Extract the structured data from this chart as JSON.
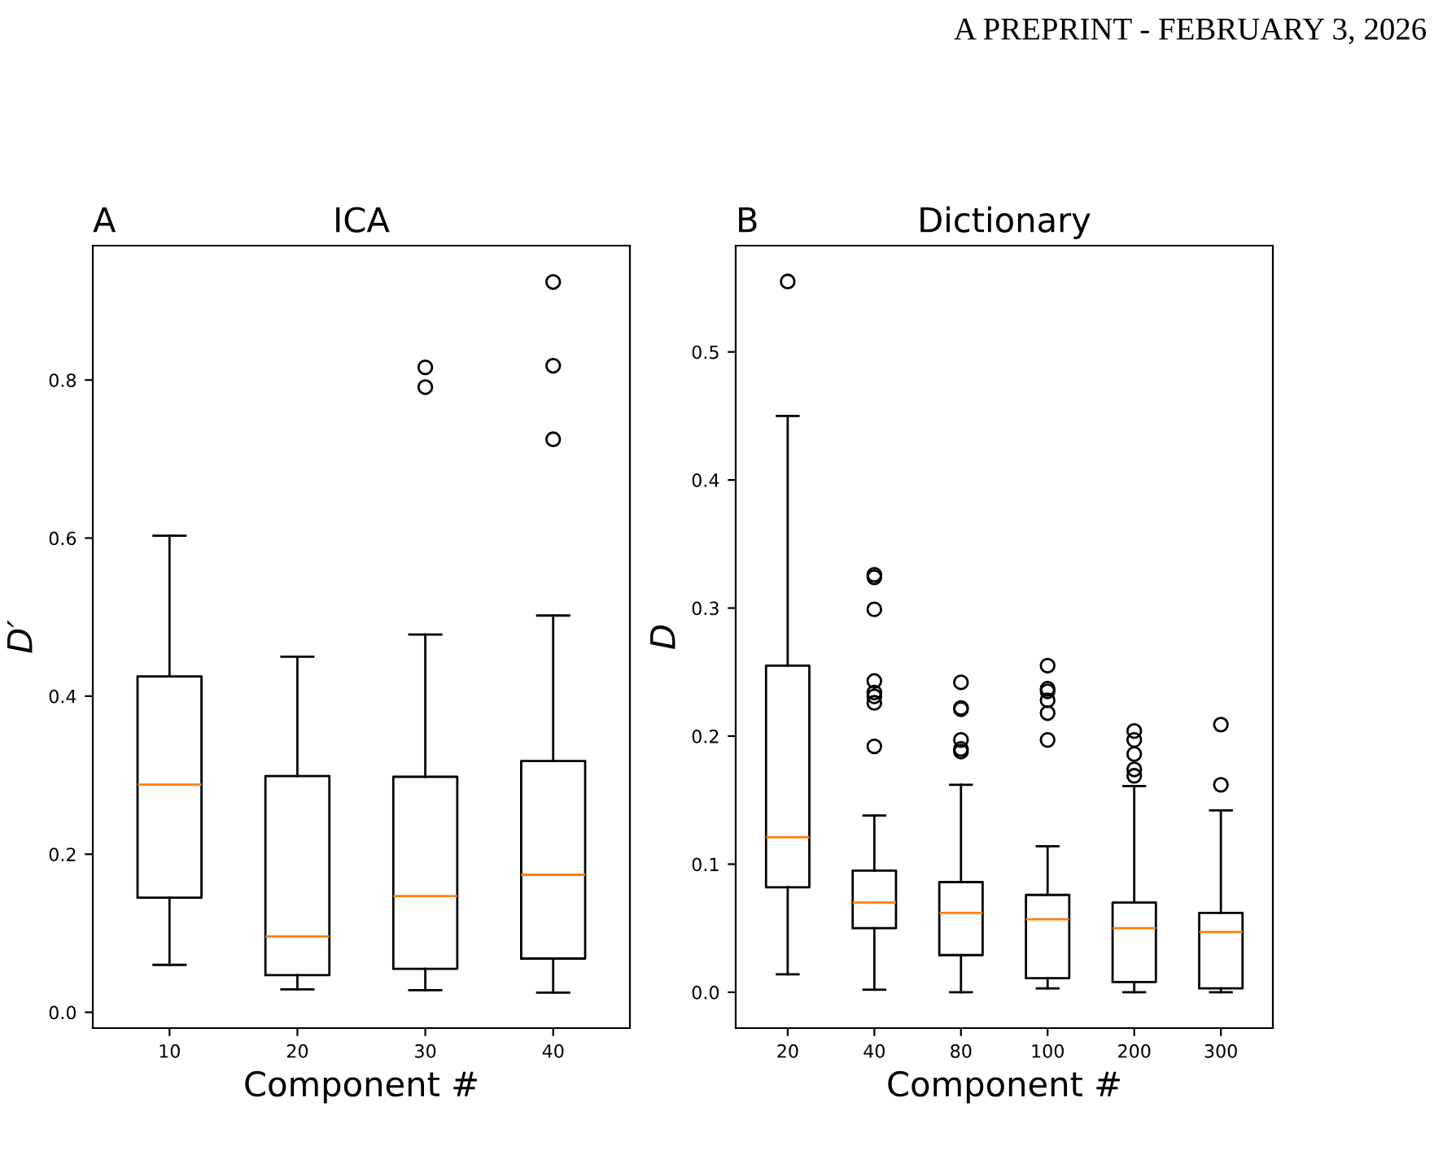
{
  "chart_data": [
    {
      "type": "box",
      "title": "ICA",
      "xlabel": "Component #",
      "ylabel": "D′",
      "annotations": [
        "A",
        "A PREPRINT - FEBRUARY 3, 2026"
      ],
      "categories": [
        "10",
        "20",
        "30",
        "40"
      ],
      "boxes": [
        {
          "low": 0.06,
          "q1": 0.145,
          "median": 0.288,
          "q3": 0.425,
          "high": 0.603
        },
        {
          "low": 0.029,
          "q1": 0.047,
          "median": 0.096,
          "q3": 0.299,
          "high": 0.45
        },
        {
          "low": 0.028,
          "q1": 0.055,
          "median": 0.147,
          "q3": 0.298,
          "high": 0.478,
          "outliers": [
            0.816,
            0.791
          ]
        },
        {
          "low": 0.025,
          "q1": 0.068,
          "median": 0.174,
          "q3": 0.318,
          "high": 0.502,
          "outliers": [
            0.924,
            0.818,
            0.725
          ]
        }
      ],
      "color": "#000000",
      "ylim": [
        -0.02,
        0.97
      ],
      "yticks": [
        {
          "value": 0,
          "label": "0.0"
        },
        0.2,
        0.4,
        0.6,
        0.8
      ],
      "grid": false,
      "legend": false
    },
    {
      "type": "box",
      "title": "Dictionary",
      "xlabel": "Component #",
      "ylabel": "D",
      "annotations": [
        "B"
      ],
      "categories": [
        "20",
        "40",
        "80",
        "100",
        "200",
        "300"
      ],
      "boxes": [
        {
          "low": 0.014,
          "q1": 0.082,
          "median": 0.121,
          "q3": 0.255,
          "high": 0.45,
          "outliers": [
            0.555
          ]
        },
        {
          "low": 0.002,
          "q1": 0.05,
          "median": 0.07,
          "q3": 0.095,
          "high": 0.138,
          "outliers": [
            0.326,
            0.324,
            0.299,
            0.243,
            0.234,
            0.231,
            0.226,
            0.192
          ]
        },
        {
          "low": 0.0,
          "q1": 0.029,
          "median": 0.062,
          "q3": 0.086,
          "high": 0.162,
          "outliers": [
            0.242,
            0.222,
            0.221,
            0.197,
            0.19,
            0.188
          ]
        },
        {
          "low": 0.003,
          "q1": 0.011,
          "median": 0.057,
          "q3": 0.076,
          "high": 0.114,
          "outliers": [
            0.255,
            0.237,
            0.235,
            0.228,
            0.218,
            0.197
          ]
        },
        {
          "low": 0.0,
          "q1": 0.008,
          "median": 0.05,
          "q3": 0.07,
          "high": 0.161,
          "outliers": [
            0.204,
            0.197,
            0.186,
            0.174,
            0.169
          ]
        },
        {
          "low": 0.0,
          "q1": 0.003,
          "median": 0.047,
          "q3": 0.062,
          "high": 0.142,
          "outliers": [
            0.209,
            0.162
          ]
        }
      ],
      "color": "#000000",
      "ylim": [
        -0.028,
        0.583
      ],
      "yticks": [
        {
          "value": 0,
          "label": "0.0"
        },
        0.1,
        0.2,
        0.3,
        0.4,
        0.5
      ],
      "grid": false,
      "legend": false
    }
  ]
}
